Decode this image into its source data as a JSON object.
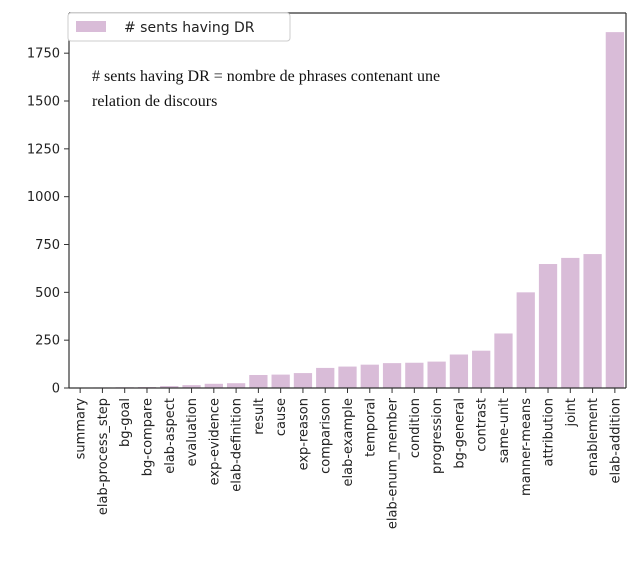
{
  "chart_data": {
    "type": "bar",
    "categories": [
      "summary",
      "elab-process_step",
      "bg-goal",
      "bg-compare",
      "elab-aspect",
      "evaluation",
      "exp-evidence",
      "elab-definition",
      "result",
      "cause",
      "exp-reason",
      "comparison",
      "elab-example",
      "temporal",
      "elab-enum_member",
      "condition",
      "progression",
      "bg-general",
      "contrast",
      "same-unit",
      "manner-means",
      "attribution",
      "joint",
      "enablement",
      "elab-addition"
    ],
    "series": [
      {
        "name": "# sents having DR",
        "values": [
          2,
          3,
          4,
          5,
          10,
          15,
          22,
          25,
          68,
          70,
          78,
          105,
          112,
          122,
          130,
          132,
          138,
          175,
          195,
          285,
          500,
          648,
          680,
          700,
          1860
        ]
      }
    ],
    "yticks": [
      0,
      250,
      500,
      750,
      1000,
      1250,
      1500,
      1750
    ],
    "ylim": [
      0,
      1960
    ],
    "grid": false,
    "legend_position": "top-left",
    "bar_color": "#d9bcd8",
    "annotation": [
      "# sents having DR = nombre de phrases contenant une",
      "relation de discours"
    ]
  }
}
